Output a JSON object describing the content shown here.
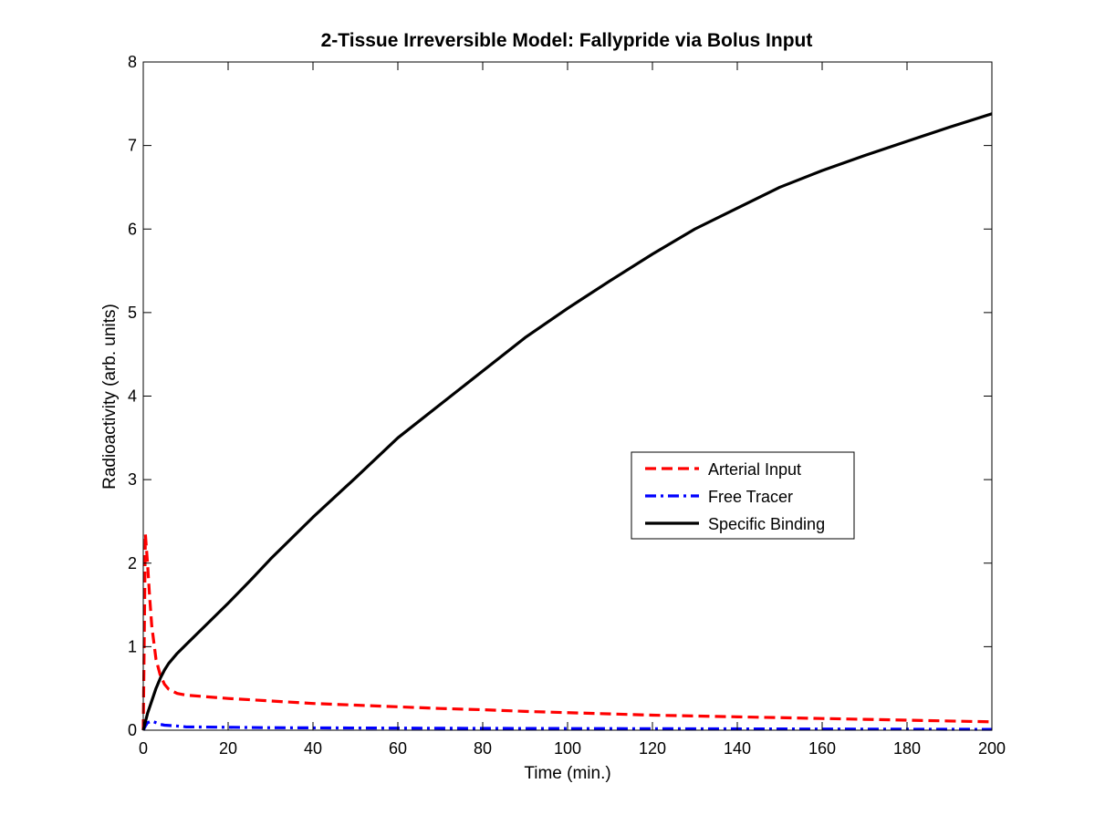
{
  "chart_data": {
    "type": "line",
    "title": "2-Tissue Irreversible Model: Fallypride via Bolus Input",
    "xlabel": "Time (min.)",
    "ylabel": "Radioactivity (arb. units)",
    "xlim": [
      0,
      200
    ],
    "ylim": [
      0,
      8
    ],
    "x_ticks": [
      0,
      20,
      40,
      60,
      80,
      100,
      120,
      140,
      160,
      180,
      200
    ],
    "y_ticks": [
      0,
      1,
      2,
      3,
      4,
      5,
      6,
      7,
      8
    ],
    "x_tick_labels": [
      "0",
      "20",
      "40",
      "60",
      "80",
      "100",
      "120",
      "140",
      "160",
      "180",
      "200"
    ],
    "y_tick_labels": [
      "0",
      "1",
      "2",
      "3",
      "4",
      "5",
      "6",
      "7",
      "8"
    ],
    "grid": false,
    "legend_position": "center-right",
    "series": [
      {
        "name": "Arterial Input",
        "color": "#ff0000",
        "style": "dashed",
        "x": [
          0,
          0.5,
          1,
          1.5,
          2,
          3,
          4,
          5,
          6,
          8,
          10,
          15,
          20,
          30,
          40,
          50,
          60,
          70,
          80,
          90,
          100,
          110,
          120,
          130,
          140,
          150,
          160,
          170,
          180,
          190,
          200
        ],
        "y": [
          0,
          2.35,
          2.0,
          1.6,
          1.25,
          0.85,
          0.66,
          0.55,
          0.49,
          0.44,
          0.42,
          0.4,
          0.38,
          0.35,
          0.32,
          0.3,
          0.28,
          0.26,
          0.245,
          0.225,
          0.21,
          0.195,
          0.18,
          0.17,
          0.16,
          0.15,
          0.14,
          0.13,
          0.12,
          0.11,
          0.1
        ]
      },
      {
        "name": "Free Tracer",
        "color": "#0000ff",
        "style": "dash-dot",
        "x": [
          0,
          0.5,
          1,
          2,
          3,
          4,
          5,
          8,
          10,
          20,
          30,
          40,
          60,
          80,
          100,
          120,
          140,
          160,
          180,
          200
        ],
        "y": [
          0,
          0.05,
          0.09,
          0.11,
          0.09,
          0.07,
          0.06,
          0.05,
          0.04,
          0.035,
          0.03,
          0.028,
          0.025,
          0.022,
          0.02,
          0.018,
          0.016,
          0.014,
          0.012,
          0.01
        ]
      },
      {
        "name": "Specific Binding",
        "color": "#000000",
        "style": "solid",
        "x": [
          0,
          1,
          2,
          3,
          4,
          5,
          6,
          8,
          10,
          15,
          20,
          25,
          30,
          40,
          50,
          60,
          70,
          80,
          90,
          100,
          110,
          120,
          130,
          140,
          150,
          160,
          170,
          180,
          190,
          200
        ],
        "y": [
          0,
          0.2,
          0.35,
          0.5,
          0.62,
          0.72,
          0.8,
          0.92,
          1.02,
          1.27,
          1.52,
          1.78,
          2.05,
          2.55,
          3.02,
          3.5,
          3.9,
          4.3,
          4.7,
          5.05,
          5.38,
          5.7,
          6.0,
          6.25,
          6.5,
          6.7,
          6.88,
          7.05,
          7.22,
          7.38
        ]
      }
    ]
  }
}
